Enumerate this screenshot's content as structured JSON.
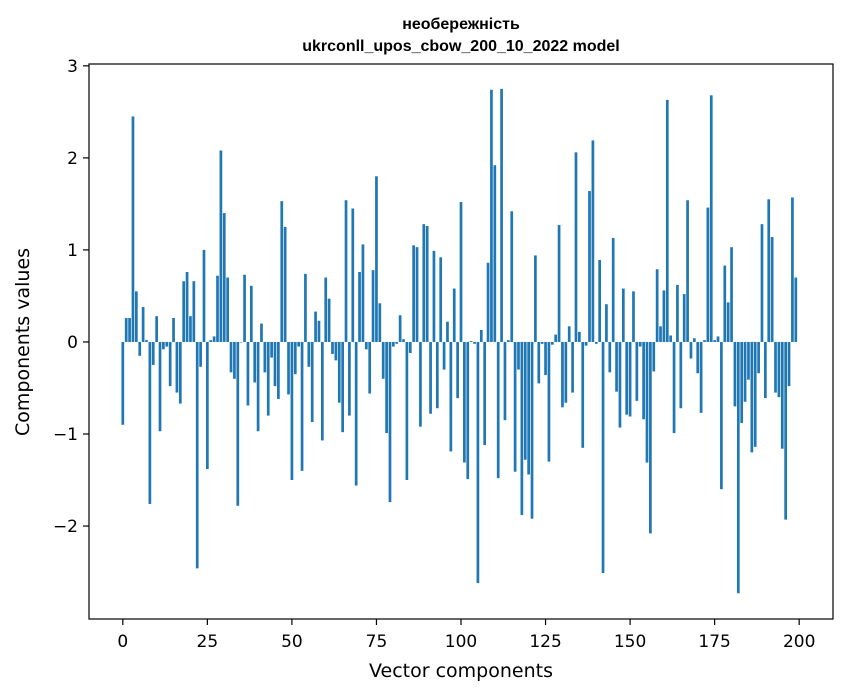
{
  "chart_data": {
    "type": "bar",
    "title_lines": [
      "необережність",
      "ukrconll_upos_cbow_200_10_2022 model"
    ],
    "xlabel": "Vector components",
    "ylabel": "Components values",
    "xlim": [
      -10,
      210
    ],
    "ylim": [
      -3.01,
      3.02
    ],
    "xticks": [
      0,
      25,
      50,
      75,
      100,
      125,
      150,
      175,
      200
    ],
    "xtick_labels": [
      "0",
      "25",
      "50",
      "75",
      "100",
      "125",
      "150",
      "175",
      "200"
    ],
    "yticks": [
      -2,
      -1,
      0,
      1,
      2,
      3
    ],
    "ytick_labels": [
      "−2",
      "−1",
      "0",
      "1",
      "2",
      "3"
    ],
    "bar_color": "#1f77b4",
    "grid": false,
    "legend": "none",
    "values": [
      -0.9,
      0.26,
      0.26,
      2.45,
      0.55,
      -0.15,
      0.38,
      0.02,
      -1.76,
      -0.25,
      0.28,
      -0.97,
      -0.08,
      -0.05,
      -0.48,
      0.26,
      -0.55,
      -0.67,
      0.66,
      0.76,
      0.28,
      0.66,
      -2.46,
      -0.27,
      1.0,
      -1.38,
      0.02,
      0.06,
      0.72,
      2.08,
      1.4,
      0.7,
      -0.33,
      -0.4,
      -1.78,
      0.0,
      0.73,
      -0.69,
      0.61,
      -0.44,
      -0.97,
      0.2,
      -0.33,
      -0.8,
      -0.17,
      -0.48,
      -0.62,
      1.53,
      1.25,
      -0.57,
      -1.5,
      -0.35,
      -0.05,
      -1.4,
      0.74,
      -0.27,
      -0.87,
      0.33,
      0.23,
      -1.07,
      0.7,
      0.47,
      -0.13,
      -0.2,
      -0.66,
      -0.98,
      1.54,
      -0.8,
      1.45,
      -1.56,
      0.76,
      1.06,
      -0.08,
      -0.56,
      0.78,
      1.8,
      0.42,
      -0.4,
      -0.99,
      -1.74,
      -0.05,
      -0.02,
      0.29,
      0.03,
      -1.5,
      -0.12,
      1.05,
      1.03,
      -0.92,
      1.28,
      1.26,
      -0.78,
      0.99,
      -0.72,
      0.92,
      -0.3,
      0.22,
      -1.19,
      0.58,
      -0.61,
      1.52,
      -1.31,
      -1.49,
      0.01,
      -0.02,
      -2.62,
      0.13,
      -1.12,
      0.86,
      2.74,
      1.92,
      -1.48,
      2.75,
      -0.85,
      0.02,
      1.42,
      -1.41,
      -0.3,
      -1.88,
      -1.28,
      -1.44,
      -1.92,
      0.94,
      -0.45,
      -0.02,
      -0.36,
      -1.3,
      -0.03,
      0.08,
      1.27,
      -0.71,
      -0.66,
      0.17,
      -0.55,
      2.06,
      0.11,
      -1.15,
      -0.04,
      1.64,
      2.19,
      -0.02,
      0.89,
      -2.51,
      0.41,
      -0.33,
      1.13,
      -0.54,
      -0.93,
      0.58,
      -0.79,
      -0.81,
      0.55,
      -0.64,
      -0.05,
      -0.84,
      -1.31,
      -2.08,
      -0.32,
      0.79,
      0.17,
      0.56,
      2.63,
      0.07,
      -0.99,
      0.62,
      -0.72,
      0.52,
      1.54,
      -0.18,
      0.04,
      -0.34,
      -0.77,
      0.02,
      1.46,
      2.68,
      0.02,
      0.06,
      -1.6,
      0.83,
      0.43,
      1.03,
      -0.7,
      -2.73,
      -0.88,
      -0.65,
      -0.41,
      -1.2,
      -1.14,
      -0.34,
      1.28,
      -0.61,
      1.55,
      1.14,
      -0.55,
      -0.6,
      -1.16,
      -1.93,
      -0.48,
      1.57,
      0.7
    ]
  }
}
